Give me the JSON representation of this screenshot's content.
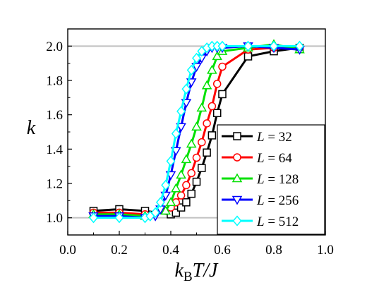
{
  "chart_data": {
    "type": "line",
    "xlabel_parts": {
      "k": "k",
      "sub": "B",
      "rest": "T/J"
    },
    "ylabel": "k",
    "xlim": [
      0.0,
      1.0
    ],
    "ylim": [
      0.9,
      2.1
    ],
    "xticks": [
      "0.0",
      "0.2",
      "0.4",
      "0.6",
      "0.8",
      "1.0"
    ],
    "yticks": [
      "1.0",
      "1.2",
      "1.4",
      "1.6",
      "1.8",
      "2.0"
    ],
    "reference_lines": [
      1.0,
      2.0
    ],
    "legend_position": "bottom-right",
    "series": [
      {
        "name": "L = 32",
        "L_label": "L",
        "L_value": "= 32",
        "color": "#000000",
        "marker": "square",
        "x": [
          0.1,
          0.2,
          0.3,
          0.4,
          0.42,
          0.44,
          0.46,
          0.48,
          0.5,
          0.52,
          0.54,
          0.56,
          0.58,
          0.6,
          0.7,
          0.8,
          0.9
        ],
        "y": [
          1.04,
          1.05,
          1.04,
          1.02,
          1.03,
          1.06,
          1.09,
          1.14,
          1.21,
          1.29,
          1.38,
          1.48,
          1.61,
          1.72,
          1.94,
          1.97,
          1.99
        ]
      },
      {
        "name": "L = 64",
        "L_label": "L",
        "L_value": "= 64",
        "color": "#ff0000",
        "marker": "circle",
        "x": [
          0.1,
          0.2,
          0.3,
          0.4,
          0.42,
          0.44,
          0.46,
          0.48,
          0.5,
          0.52,
          0.54,
          0.56,
          0.58,
          0.6,
          0.7,
          0.8,
          0.9
        ],
        "y": [
          1.03,
          1.03,
          1.02,
          1.06,
          1.09,
          1.13,
          1.19,
          1.26,
          1.35,
          1.44,
          1.55,
          1.65,
          1.78,
          1.88,
          1.98,
          1.99,
          1.99
        ]
      },
      {
        "name": "L = 128",
        "L_label": "L",
        "L_value": "= 128",
        "color": "#00e000",
        "marker": "triangle-up",
        "x": [
          0.1,
          0.2,
          0.3,
          0.38,
          0.4,
          0.42,
          0.44,
          0.46,
          0.48,
          0.5,
          0.52,
          0.54,
          0.56,
          0.58,
          0.6,
          0.7,
          0.8,
          0.9
        ],
        "y": [
          1.02,
          1.02,
          1.01,
          1.04,
          1.09,
          1.17,
          1.25,
          1.34,
          1.43,
          1.53,
          1.64,
          1.77,
          1.86,
          1.94,
          1.97,
          1.99,
          2.01,
          1.98
        ]
      },
      {
        "name": "L = 256",
        "L_label": "L",
        "L_value": "= 256",
        "color": "#0000ff",
        "marker": "triangle-down",
        "x": [
          0.1,
          0.2,
          0.3,
          0.34,
          0.36,
          0.38,
          0.4,
          0.42,
          0.44,
          0.46,
          0.48,
          0.5,
          0.52,
          0.54,
          0.56,
          0.58,
          0.6,
          0.7,
          0.8,
          0.9
        ],
        "y": [
          1.01,
          1.01,
          1.0,
          1.01,
          1.05,
          1.13,
          1.25,
          1.39,
          1.53,
          1.67,
          1.79,
          1.88,
          1.93,
          1.97,
          1.99,
          1.99,
          1.99,
          2.0,
          1.99,
          1.98
        ]
      },
      {
        "name": "L = 512",
        "L_label": "L",
        "L_value": "= 512",
        "color": "#00ffff",
        "marker": "diamond",
        "x": [
          0.1,
          0.2,
          0.3,
          0.32,
          0.34,
          0.36,
          0.38,
          0.4,
          0.42,
          0.44,
          0.46,
          0.48,
          0.5,
          0.52,
          0.54,
          0.56,
          0.58,
          0.6,
          0.7,
          0.8,
          0.9
        ],
        "y": [
          1.0,
          1.0,
          1.0,
          1.01,
          1.03,
          1.09,
          1.19,
          1.33,
          1.49,
          1.62,
          1.75,
          1.86,
          1.93,
          1.97,
          1.99,
          2.0,
          2.0,
          2.0,
          2.0,
          2.0,
          2.0
        ]
      }
    ]
  }
}
